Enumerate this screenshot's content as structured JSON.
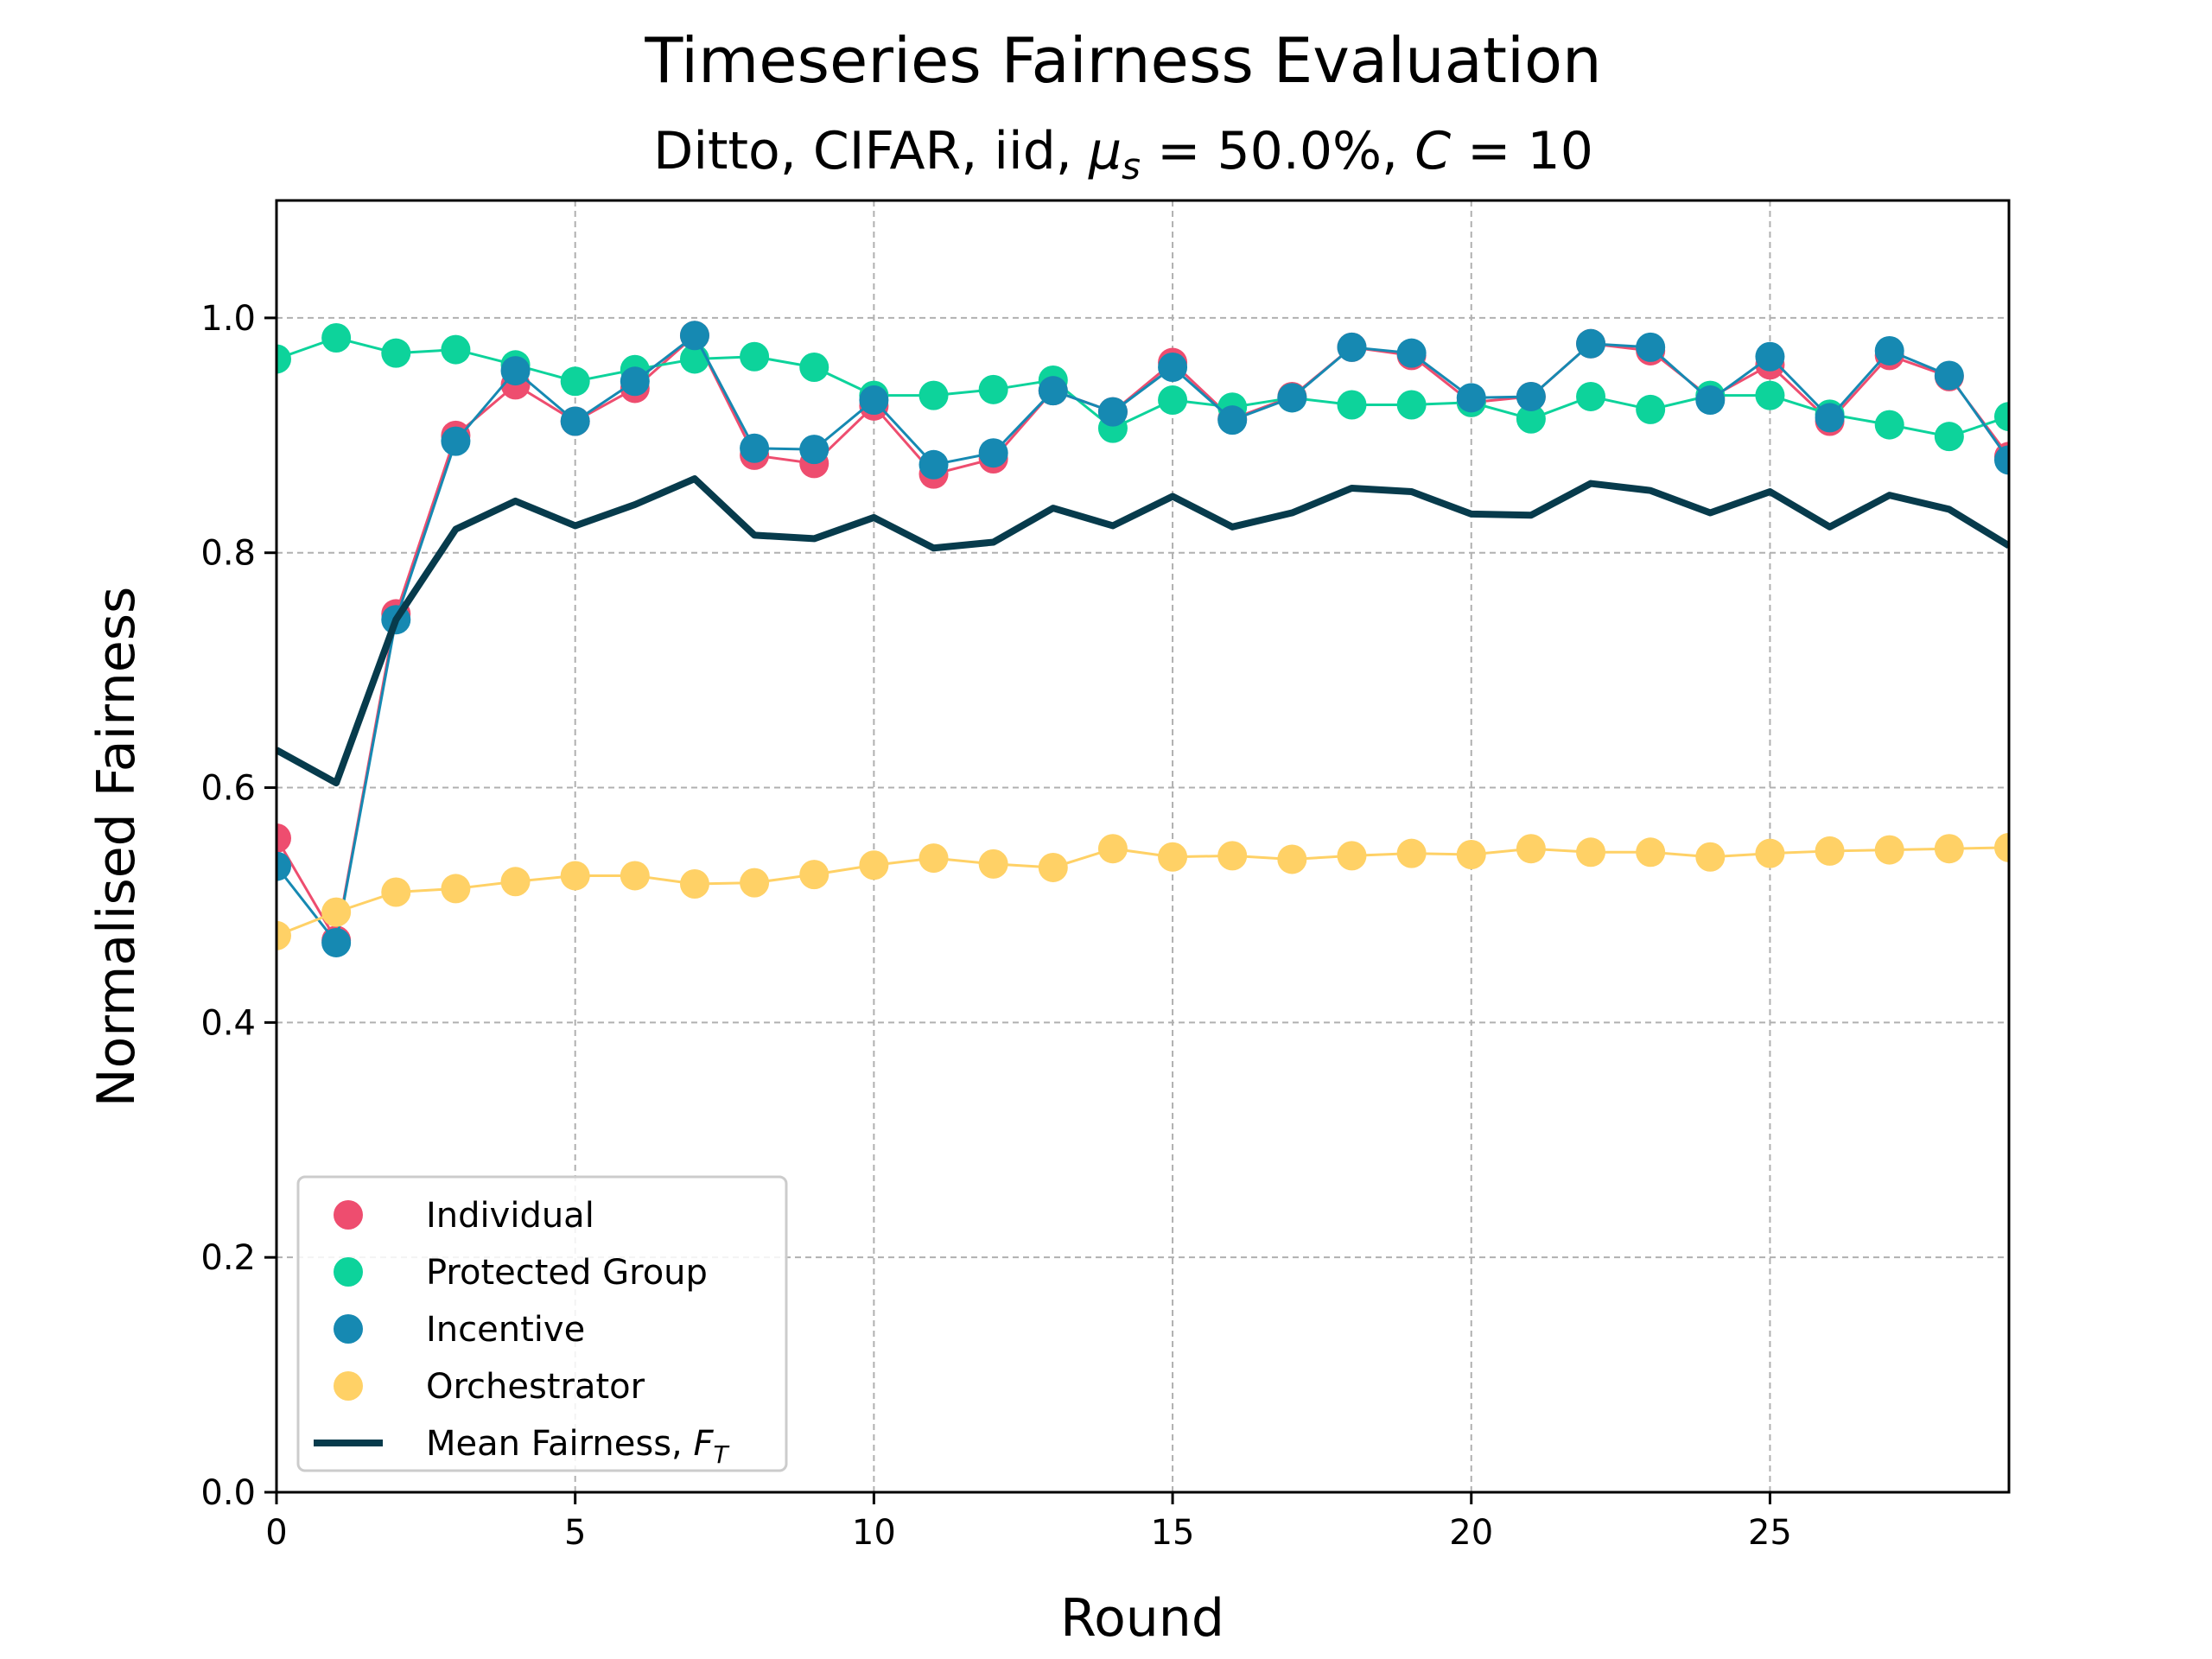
{
  "chart_data": {
    "type": "line",
    "title": "Timeseries Fairness Evaluation",
    "subtitle": {
      "prefix": "Ditto, CIFAR, iid, ",
      "mu": "μ",
      "mu_sub": "s",
      "eq1": " = 50.0%, ",
      "c": "C",
      "eq2": " = 10"
    },
    "xlabel": "Round",
    "ylabel": "Normalised Fairness",
    "xlim": [
      0,
      29
    ],
    "ylim": [
      0,
      1.1
    ],
    "xticks": [
      0,
      5,
      10,
      15,
      20,
      25
    ],
    "yticks": [
      0.0,
      0.2,
      0.4,
      0.6,
      0.8,
      1.0
    ],
    "ytick_labels": [
      "0.0",
      "0.2",
      "0.4",
      "0.6",
      "0.8",
      "1.0"
    ],
    "grid": true,
    "legend_position": "lower-left",
    "x": [
      0,
      1,
      2,
      3,
      4,
      5,
      6,
      7,
      8,
      9,
      10,
      11,
      12,
      13,
      14,
      15,
      16,
      17,
      18,
      19,
      20,
      21,
      22,
      23,
      24,
      25,
      26,
      27,
      28,
      29
    ],
    "series": [
      {
        "name": "Individual",
        "color": "#ee4d6f",
        "style": "markers",
        "values": [
          0.557,
          0.47,
          0.748,
          0.9,
          0.943,
          0.912,
          0.94,
          0.985,
          0.883,
          0.876,
          0.925,
          0.867,
          0.88,
          0.938,
          0.92,
          0.962,
          0.914,
          0.933,
          0.975,
          0.968,
          0.928,
          0.933,
          0.978,
          0.972,
          0.932,
          0.96,
          0.912,
          0.968,
          0.95,
          0.882
        ]
      },
      {
        "name": "Protected Group",
        "color": "#0dd39b",
        "style": "markers",
        "values": [
          0.965,
          0.983,
          0.97,
          0.973,
          0.96,
          0.946,
          0.956,
          0.965,
          0.967,
          0.958,
          0.934,
          0.934,
          0.939,
          0.947,
          0.906,
          0.93,
          0.924,
          0.932,
          0.926,
          0.926,
          0.928,
          0.914,
          0.933,
          0.922,
          0.934,
          0.934,
          0.918,
          0.909,
          0.899,
          0.916
        ]
      },
      {
        "name": "Incentive",
        "color": "#1689b2",
        "style": "markers",
        "values": [
          0.533,
          0.468,
          0.743,
          0.895,
          0.955,
          0.912,
          0.946,
          0.985,
          0.889,
          0.888,
          0.93,
          0.875,
          0.885,
          0.938,
          0.92,
          0.958,
          0.913,
          0.932,
          0.975,
          0.97,
          0.932,
          0.933,
          0.978,
          0.975,
          0.93,
          0.967,
          0.915,
          0.972,
          0.951,
          0.879
        ]
      },
      {
        "name": "Orchestrator",
        "color": "#ffd166",
        "style": "markers",
        "values": [
          0.474,
          0.494,
          0.511,
          0.514,
          0.52,
          0.525,
          0.525,
          0.518,
          0.519,
          0.526,
          0.534,
          0.54,
          0.535,
          0.532,
          0.548,
          0.541,
          0.542,
          0.539,
          0.542,
          0.544,
          0.543,
          0.548,
          0.545,
          0.545,
          0.541,
          0.544,
          0.546,
          0.547,
          0.548,
          0.549
        ]
      },
      {
        "name": "Mean Fairness, ",
        "name_math": "F",
        "name_sub": "T",
        "color": "#073b4c",
        "style": "line",
        "values": [
          0.632,
          0.604,
          0.743,
          0.82,
          0.844,
          0.823,
          0.841,
          0.863,
          0.815,
          0.812,
          0.83,
          0.804,
          0.809,
          0.838,
          0.823,
          0.848,
          0.822,
          0.834,
          0.855,
          0.852,
          0.833,
          0.832,
          0.859,
          0.853,
          0.834,
          0.852,
          0.822,
          0.849,
          0.837,
          0.806
        ]
      }
    ]
  }
}
